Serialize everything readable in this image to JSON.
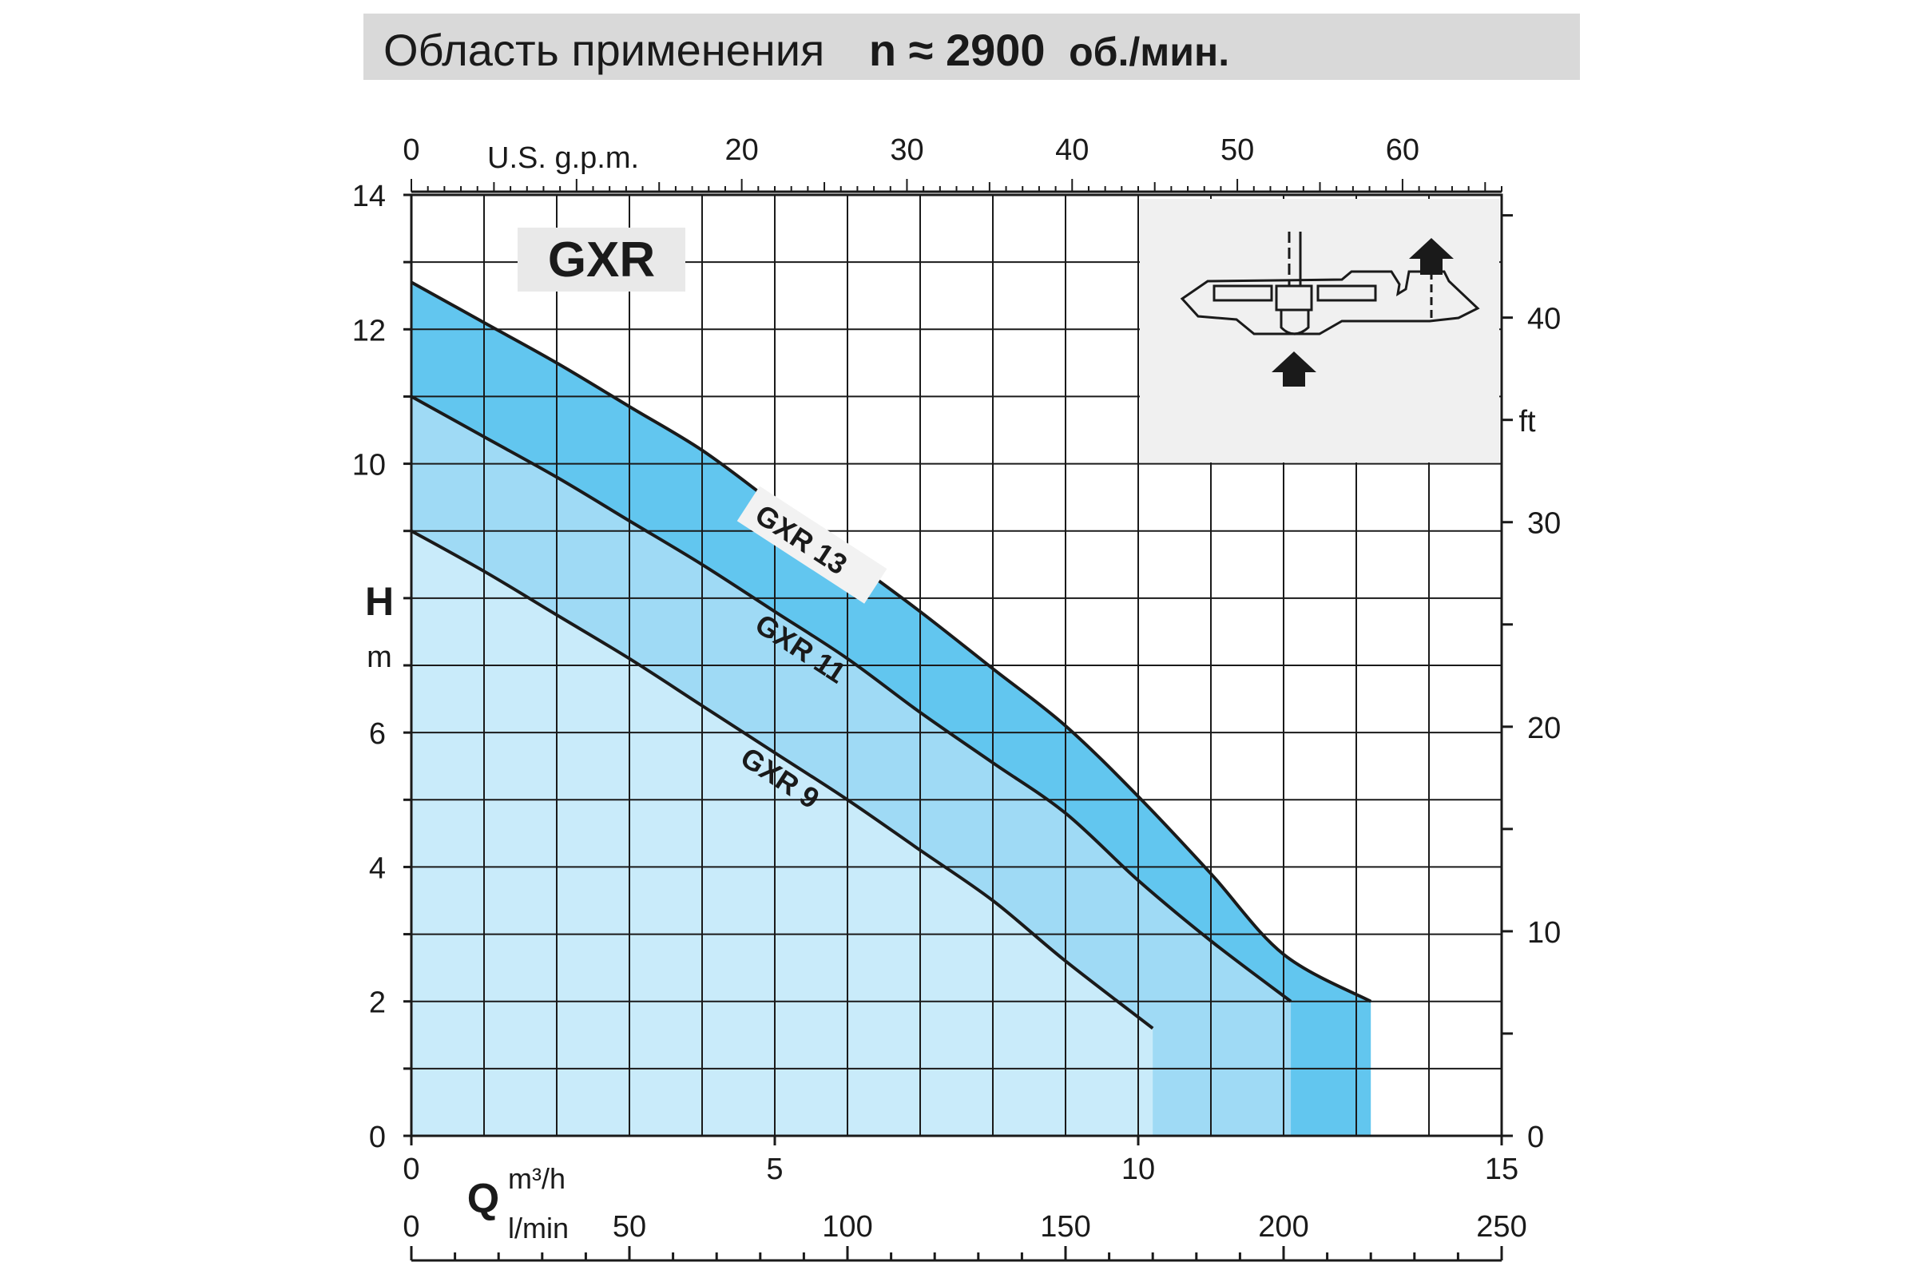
{
  "chart_data": {
    "type": "line",
    "title": "Область применения  n ≈ 2900 об./мин.",
    "title_parts": {
      "text": "Область применения",
      "n": "n ≈ 2900",
      "unit": "об./мин."
    },
    "series_label": "GXR",
    "x": {
      "symbol": "Q",
      "unit": "m³/h",
      "range": [
        0,
        15
      ],
      "ticks": [
        "0",
        "5",
        "10",
        "15"
      ]
    },
    "x_lmin": {
      "unit": "l/min",
      "range": [
        0,
        250
      ],
      "ticks": [
        "0",
        "50",
        "100",
        "150",
        "200",
        "250"
      ]
    },
    "x_gpm": {
      "unit": "U.S. g.p.m.",
      "range": [
        0,
        66
      ],
      "ticks": [
        "0",
        "20",
        "30",
        "40",
        "50",
        "60"
      ]
    },
    "y": {
      "symbol": "H",
      "unit": "m",
      "range": [
        0,
        14
      ],
      "ticks": [
        "0",
        "2",
        "4",
        "6",
        "10",
        "12",
        "14"
      ]
    },
    "y_ft": {
      "unit": "ft",
      "range": [
        0,
        46
      ],
      "ticks": [
        "0",
        "10",
        "20",
        "30",
        "40"
      ]
    },
    "grid": true,
    "series": [
      {
        "name": "GXR 13",
        "color": "#62c6ef",
        "x": [
          0,
          1,
          2,
          3,
          4,
          5,
          6,
          7,
          8,
          9,
          10,
          11,
          12,
          13.2
        ],
        "y": [
          12.7,
          12.1,
          11.5,
          10.85,
          10.2,
          9.4,
          8.6,
          7.8,
          6.95,
          6.1,
          5.05,
          3.9,
          2.7,
          2.0
        ]
      },
      {
        "name": "GXR 11",
        "color": "#9fdaf5",
        "x": [
          0,
          1,
          2,
          3,
          4,
          5,
          6,
          7,
          8,
          9,
          10,
          11,
          12.1
        ],
        "y": [
          11.0,
          10.4,
          9.8,
          9.15,
          8.5,
          7.8,
          7.1,
          6.3,
          5.55,
          4.8,
          3.8,
          2.9,
          2.0
        ]
      },
      {
        "name": "GXR 9",
        "color": "#c9ebfa",
        "x": [
          0,
          1,
          2,
          3,
          4,
          5,
          6,
          7,
          8,
          9,
          10.2
        ],
        "y": [
          9.0,
          8.4,
          7.75,
          7.1,
          6.4,
          5.7,
          5.0,
          4.25,
          3.5,
          2.6,
          1.6
        ]
      }
    ],
    "inset": "pump-impeller-diagram"
  }
}
